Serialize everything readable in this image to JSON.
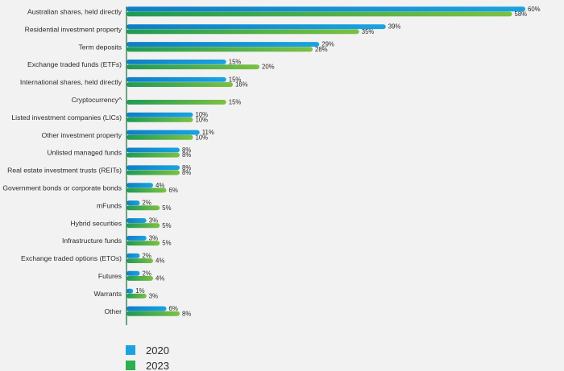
{
  "chart_data": {
    "type": "bar",
    "orientation": "horizontal",
    "categories": [
      "Australian shares, held directly",
      "Residential investment property",
      "Term deposits",
      "Exchange traded funds (ETFs)",
      "International shares, held directly",
      "Cryptocurrency^",
      "Listed investment companies (LICs)",
      "Other investment property",
      "Unlisted managed funds",
      "Real estate investment trusts (REITs)",
      "Government bonds or corporate bonds",
      "mFunds",
      "Hybrid securities",
      "Infrastructure funds",
      "Exchange traded options (ETOs)",
      "Futures",
      "Warrants",
      "Other"
    ],
    "series": [
      {
        "name": "2020",
        "color": "#1aa3e0",
        "values": [
          60,
          39,
          29,
          15,
          15,
          null,
          10,
          11,
          8,
          8,
          4,
          2,
          3,
          3,
          2,
          2,
          1,
          6
        ],
        "labels": [
          "60%",
          "39%",
          "29%",
          "15%",
          "15%",
          "",
          "10%",
          "11%",
          "8%",
          "8%",
          "4%",
          "2%",
          "3%",
          "3%",
          "2%",
          "2%",
          "1%",
          "6%"
        ]
      },
      {
        "name": "2023",
        "color": "#7bc142",
        "values": [
          58,
          35,
          28,
          20,
          16,
          15,
          10,
          10,
          8,
          8,
          6,
          5,
          5,
          5,
          4,
          4,
          3,
          8
        ],
        "labels": [
          "58%",
          "35%",
          "28%",
          "20%",
          "16%",
          "15%",
          "10%",
          "10%",
          "8%",
          "8%",
          "6%",
          "5%",
          "5%",
          "5%",
          "4%",
          "4%",
          "3%",
          "8%"
        ]
      }
    ],
    "legend": {
      "position": "bottom-left",
      "entries": [
        {
          "label": "2020",
          "color": "#1aa3e0"
        },
        {
          "label": "2023",
          "color": "#2db04b"
        }
      ]
    },
    "grid": false
  }
}
